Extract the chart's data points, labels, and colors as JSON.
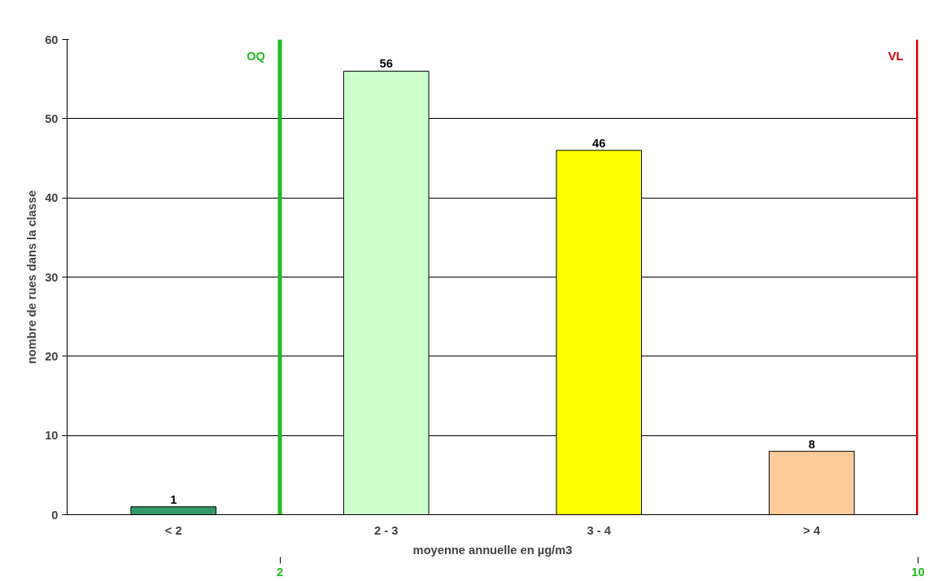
{
  "chart_data": {
    "type": "bar",
    "xlabel": "moyenne annuelle en µg/m3",
    "ylabel": "nombre de rues dans la classe",
    "categories": [
      "< 2",
      "2 - 3",
      "3 - 4",
      "> 4"
    ],
    "values": [
      1,
      56,
      46,
      8
    ],
    "colors": [
      "#339966",
      "#ccffcc",
      "#ffff00",
      "#ffcc99"
    ],
    "ylim": [
      0,
      60
    ],
    "yticks": [
      0,
      10,
      20,
      30,
      40,
      50,
      60
    ],
    "grid": "y",
    "data_labels": true,
    "x2lim": [
      -0.667,
      10
    ],
    "x2ticks": [
      2,
      10
    ],
    "ref_lines": [
      {
        "axis": "x2",
        "value": 2,
        "label": "OQ",
        "color": "#22bb22"
      },
      {
        "axis": "x2",
        "value": 10,
        "label": "VL",
        "color": "#dd0000"
      }
    ]
  }
}
